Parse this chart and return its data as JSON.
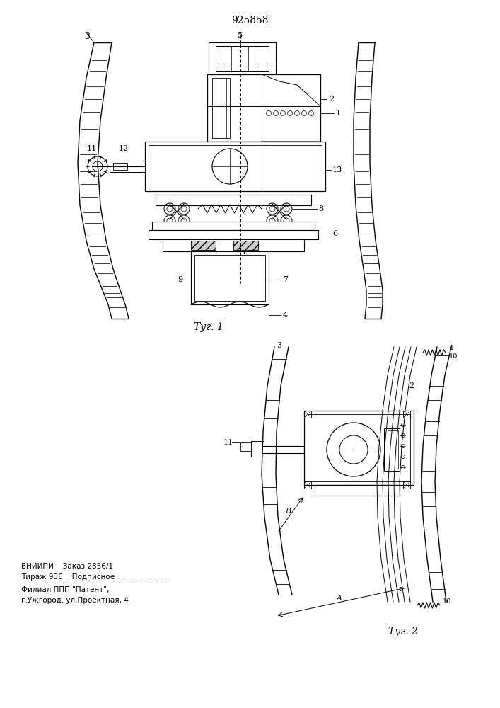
{
  "title": "925858",
  "fig1_caption": "Τуг. 1",
  "fig2_caption": "Τуг. 2",
  "footer_line1": "ВНИИПИ    Заказ 2856/1",
  "footer_line2": "Тираж 936    Подписное",
  "footer_line4": "Филиал ППП \"Патент\",",
  "footer_line5": "г.Ужгород. ул.Проектная, 4",
  "bg_color": "#ffffff",
  "lc": "#000000"
}
